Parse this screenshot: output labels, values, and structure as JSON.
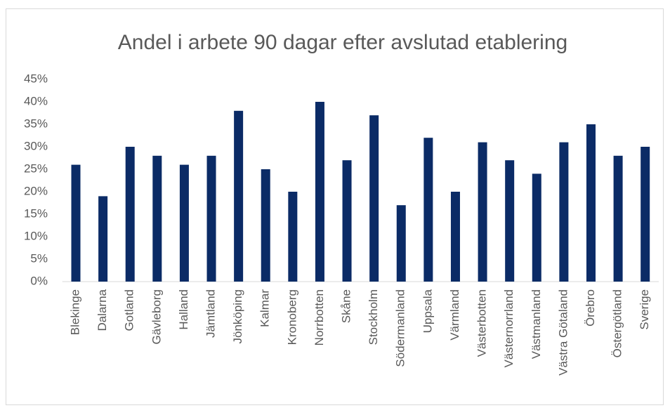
{
  "chart_data": {
    "type": "bar",
    "title": "Andel i arbete 90 dagar efter avslutad etablering",
    "categories": [
      "Blekinge",
      "Dalarna",
      "Gotland",
      "Gävleborg",
      "Halland",
      "Jämtland",
      "Jönköping",
      "Kalmar",
      "Kronoberg",
      "Norrbotten",
      "Skåne",
      "Stockholm",
      "Södermanland",
      "Uppsala",
      "Värmland",
      "Västerbotten",
      "Västernorrland",
      "Västmanland",
      "Västra Götaland",
      "Örebro",
      "Östergötland",
      "Sverige"
    ],
    "values": [
      26,
      19,
      30,
      28,
      26,
      28,
      38,
      25,
      20,
      40,
      27,
      37,
      17,
      32,
      20,
      31,
      27,
      24,
      31,
      35,
      28,
      30
    ],
    "color": "#0b2b66",
    "ylim": [
      0,
      45
    ],
    "yticks": [
      {
        "value": 0,
        "label": "0%"
      },
      {
        "value": 5,
        "label": "5%"
      },
      {
        "value": 10,
        "label": "10%"
      },
      {
        "value": 15,
        "label": "15%"
      },
      {
        "value": 20,
        "label": "20%"
      },
      {
        "value": 25,
        "label": "25%"
      },
      {
        "value": 30,
        "label": "30%"
      },
      {
        "value": 35,
        "label": "35%"
      },
      {
        "value": 40,
        "label": "40%"
      },
      {
        "value": 45,
        "label": "45%"
      }
    ],
    "grid": false
  }
}
